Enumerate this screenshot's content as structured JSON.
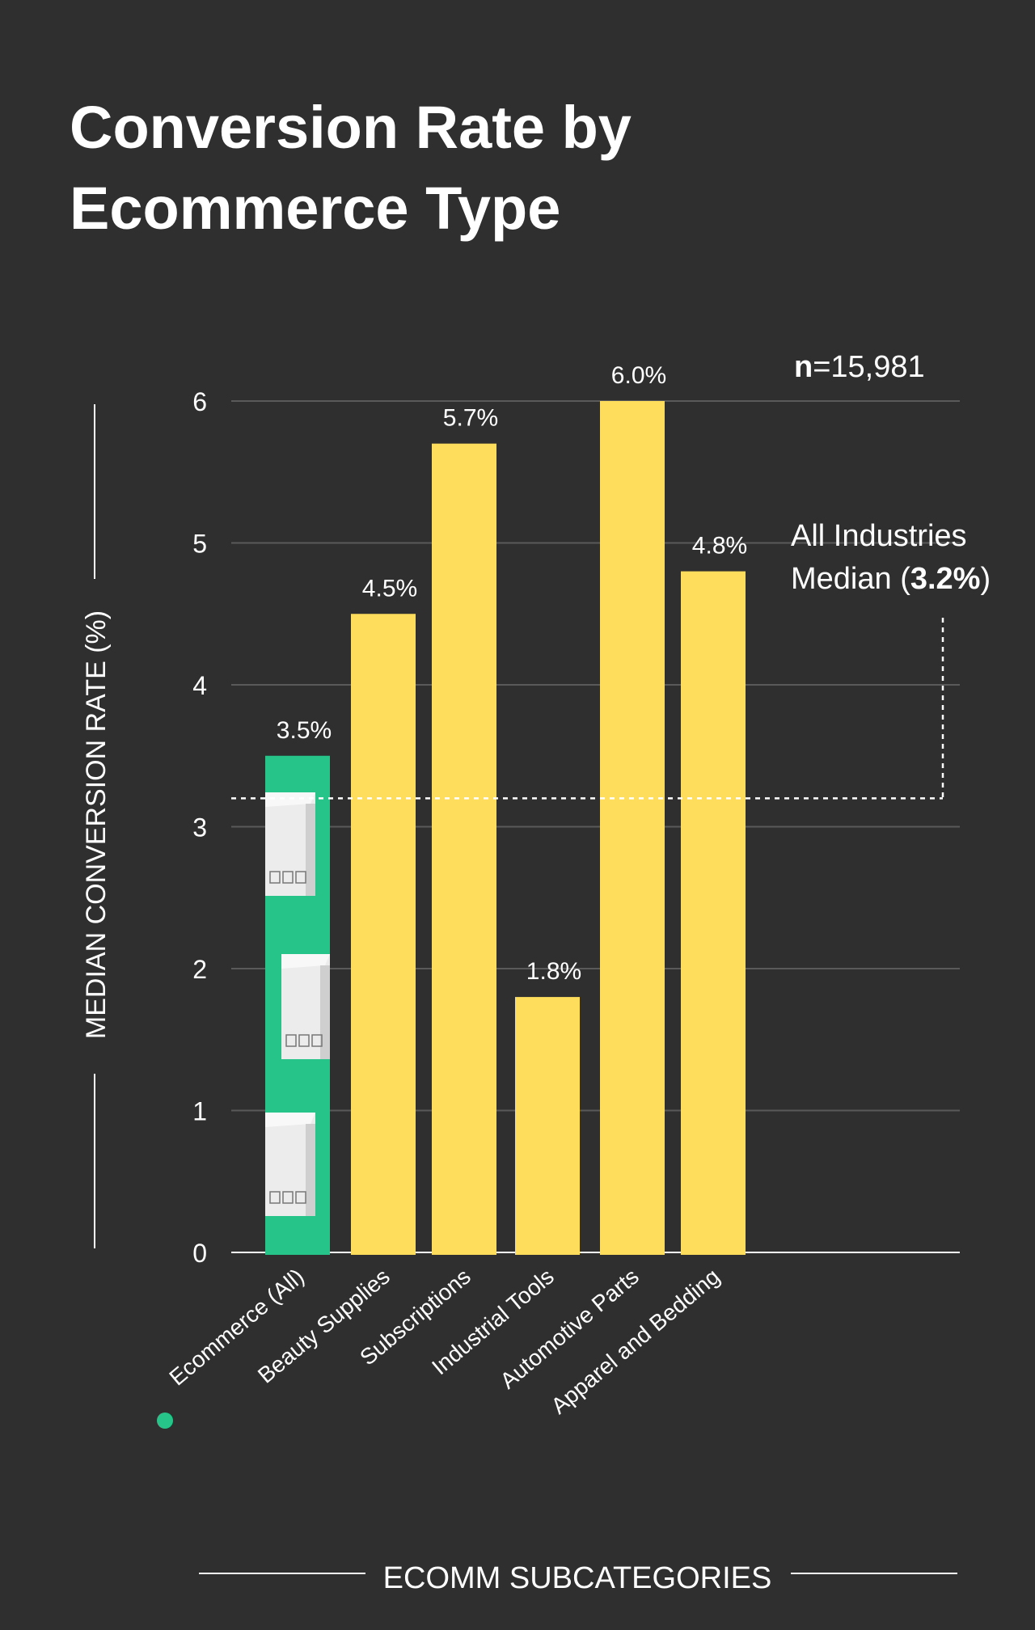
{
  "chart_data": {
    "type": "bar",
    "title": "Conversion Rate by Ecommerce Type",
    "ylabel": "MEDIAN CONVERSION RATE (%)",
    "xlabel": "ECOMM SUBCATEGORIES",
    "ylim": [
      0,
      6
    ],
    "yticks": [
      0,
      1,
      2,
      3,
      4,
      5,
      6
    ],
    "grid": true,
    "categories": [
      "Ecommerce (All)",
      "Beauty Supplies",
      "Subscriptions",
      "Industrial Tools",
      "Automotive Parts",
      "Apparel and Bedding"
    ],
    "values": [
      3.5,
      4.5,
      5.7,
      1.8,
      6.0,
      4.8
    ],
    "value_labels": [
      "3.5%",
      "4.5%",
      "5.7%",
      "1.8%",
      "6.0%",
      "4.8%"
    ],
    "highlight_index": 0,
    "sample_size": {
      "label": "n",
      "value": "=15,981"
    },
    "reference_line": {
      "value": 3.2,
      "label_line1": "All Industries",
      "label_line2_prefix": "Median (",
      "label_line2_bold": "3.2%",
      "label_line2_suffix": ")"
    }
  },
  "colors": {
    "background": "#2f2f2f",
    "highlight": "#27c48a",
    "bar": "#ffdd5c",
    "grid": "#5a5a5a",
    "text": "#ffffff"
  }
}
